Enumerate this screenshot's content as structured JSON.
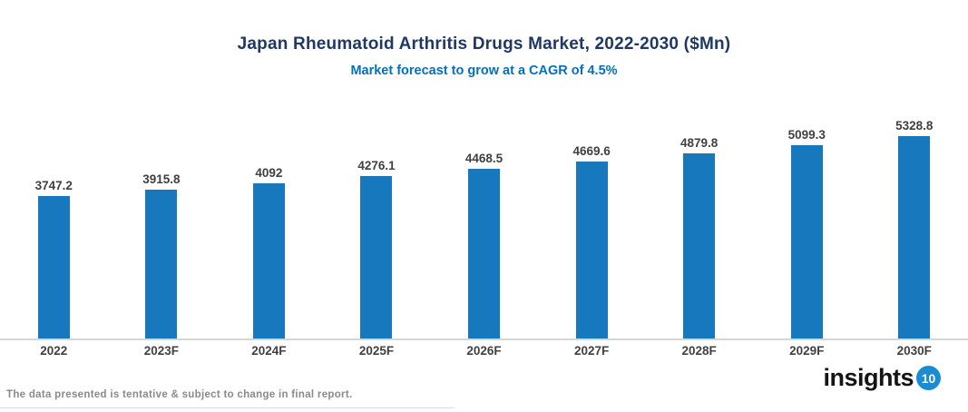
{
  "header": {
    "title": "Japan Rheumatoid Arthritis Drugs Market, 2022-2030 ($Mn)",
    "subtitle": "Market forecast to grow at a CAGR of 4.5%"
  },
  "chart_data": {
    "type": "bar",
    "title": "Japan Rheumatoid Arthritis Drugs Market, 2022-2030 ($Mn)",
    "subtitle": "Market forecast to grow at a CAGR of 4.5%",
    "categories": [
      "2022",
      "2023F",
      "2024F",
      "2025F",
      "2026F",
      "2027F",
      "2028F",
      "2029F",
      "2030F"
    ],
    "values": [
      3747.2,
      3915.8,
      4092,
      4276.1,
      4468.5,
      4669.6,
      4879.8,
      5099.3,
      5328.8
    ],
    "cagr_percent": 4.5,
    "unit": "$Mn",
    "xlabel": "",
    "ylabel": "",
    "ylim": [
      0,
      5600
    ],
    "grid": false,
    "legend": "none",
    "bar_color": "#1878BE",
    "value_label_color": "#404040",
    "axis_line_color": "#D6D6D6"
  },
  "colors": {
    "title": "#1F3864",
    "subtitle": "#0070C0",
    "axis_labels": "#404040",
    "footer_text": "#8A8A8A",
    "logo_circle": "#1C8CD2",
    "logo_text": "#141414",
    "background": "#FFFFFF"
  },
  "footer": {
    "disclaimer": "The data presented is tentative & subject to change in final report.",
    "logo_text": "insights",
    "logo_number": "10"
  }
}
